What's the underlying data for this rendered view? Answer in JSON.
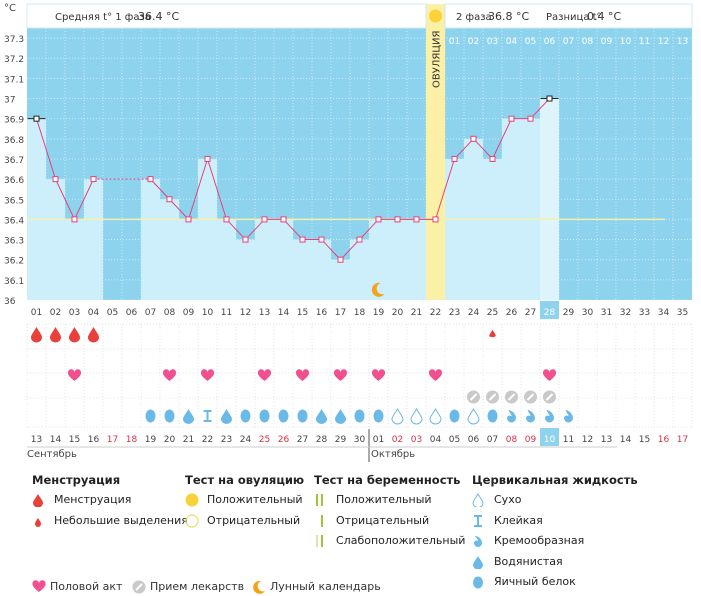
{
  "chart_data": {
    "type": "line",
    "y_unit": "°C",
    "ylim": [
      36,
      37.35
    ],
    "yticks": [
      "36",
      "36.1",
      "36.2",
      "36.3",
      "36.4",
      "36.5",
      "36.6",
      "36.7",
      "36.8",
      "36.9",
      "37",
      "37.1",
      "37.2",
      "37.3"
    ],
    "cycle_days": [
      "01",
      "02",
      "03",
      "04",
      "05",
      "06",
      "07",
      "08",
      "09",
      "10",
      "11",
      "12",
      "13",
      "14",
      "15",
      "16",
      "17",
      "18",
      "19",
      "20",
      "21",
      "22",
      "23",
      "24",
      "25",
      "26",
      "27",
      "28",
      "29",
      "30",
      "31",
      "32",
      "33",
      "34",
      "35"
    ],
    "current_cycle_day": "28",
    "temperatures": [
      36.9,
      36.6,
      36.4,
      36.6,
      null,
      null,
      36.6,
      36.5,
      36.4,
      36.7,
      36.4,
      36.3,
      36.4,
      36.4,
      36.3,
      36.3,
      36.2,
      36.3,
      36.4,
      36.4,
      36.4,
      36.4,
      36.7,
      36.8,
      36.7,
      36.9,
      36.9,
      37.0,
      null,
      null,
      null,
      null,
      null,
      null,
      null
    ],
    "coverline": 36.4,
    "ovulation_day": "22",
    "ovulation_label": "ОВУЛЯЦИЯ",
    "phase1_label": "Средняя t° 1 фаза",
    "phase1_value": "36.4 °C",
    "phase2_label": "2 фаза",
    "phase2_value": "36.8 °C",
    "diff_label": "Разница t°",
    "diff_value": "0.4 °C",
    "post_ovulation_days": [
      "01",
      "02",
      "03",
      "04",
      "05",
      "06",
      "07",
      "08",
      "09",
      "10",
      "11",
      "12",
      "13"
    ],
    "moon_day": "19",
    "menstruation": [
      "big",
      "big",
      "big",
      "big",
      null,
      null,
      null,
      null,
      null,
      null,
      null,
      null,
      null,
      null,
      null,
      null,
      null,
      null,
      null,
      null,
      null,
      null,
      null,
      null,
      "small",
      null,
      null,
      null,
      null,
      null,
      null,
      null,
      null,
      null,
      null
    ],
    "intercourse_days": [
      "03",
      "08",
      "10",
      "13",
      "15",
      "17",
      "19",
      "22",
      "28"
    ],
    "medication_days": [
      "24",
      "25",
      "26",
      "27",
      "28"
    ],
    "cervical_fluid": [
      null,
      null,
      null,
      null,
      null,
      null,
      "egg",
      "egg",
      "watery",
      "sticky",
      "watery",
      "egg",
      "egg",
      "egg",
      "egg",
      "watery",
      "watery",
      "egg",
      "egg",
      "dry",
      "dry",
      "dry",
      "egg",
      "dry",
      "egg",
      "creamy",
      "creamy",
      "creamy",
      "creamy",
      null,
      null,
      null,
      null,
      null,
      null
    ],
    "calendar_dates": [
      "13",
      "14",
      "15",
      "16",
      "17",
      "18",
      "19",
      "20",
      "21",
      "22",
      "23",
      "24",
      "25",
      "26",
      "27",
      "28",
      "29",
      "30",
      "01",
      "02",
      "03",
      "04",
      "05",
      "06",
      "07",
      "08",
      "09",
      "10",
      "11",
      "12",
      "13",
      "14",
      "15",
      "16",
      "17"
    ],
    "calendar_red": [
      false,
      false,
      false,
      false,
      true,
      true,
      false,
      false,
      false,
      false,
      false,
      false,
      true,
      true,
      false,
      false,
      false,
      false,
      false,
      true,
      true,
      false,
      false,
      false,
      false,
      true,
      true,
      false,
      false,
      false,
      false,
      false,
      false,
      true,
      true
    ],
    "month1": "Сентябрь",
    "month2": "Октябрь"
  },
  "legend": {
    "menstruation": {
      "title": "Менструация",
      "items": [
        "Менструация",
        "Небольшие выделения"
      ]
    },
    "ovulation_test": {
      "title": "Тест на овуляцию",
      "items": [
        "Положительный",
        "Отрицательный"
      ]
    },
    "pregnancy_test": {
      "title": "Тест на беременность",
      "items": [
        "Положительный",
        "Отрицательный",
        "Слабоположительный"
      ]
    },
    "cervical": {
      "title": "Цервикальная жидкость",
      "items": [
        "Сухо",
        "Клейкая",
        "Кремообразная",
        "Водянистая",
        "Яичный белок"
      ]
    },
    "bottom": [
      "Половой акт",
      "Прием лекарств",
      "Лунный календарь"
    ]
  },
  "colors": {
    "sky": "#8dd3ee",
    "bar": "#cdeefb",
    "line": "#e8407a",
    "ovulation": "#fbf0a6",
    "drop_red": "#e8403b",
    "heart": "#f24f8f",
    "fluid": "#6bb9e6",
    "moon": "#f3a21a"
  }
}
